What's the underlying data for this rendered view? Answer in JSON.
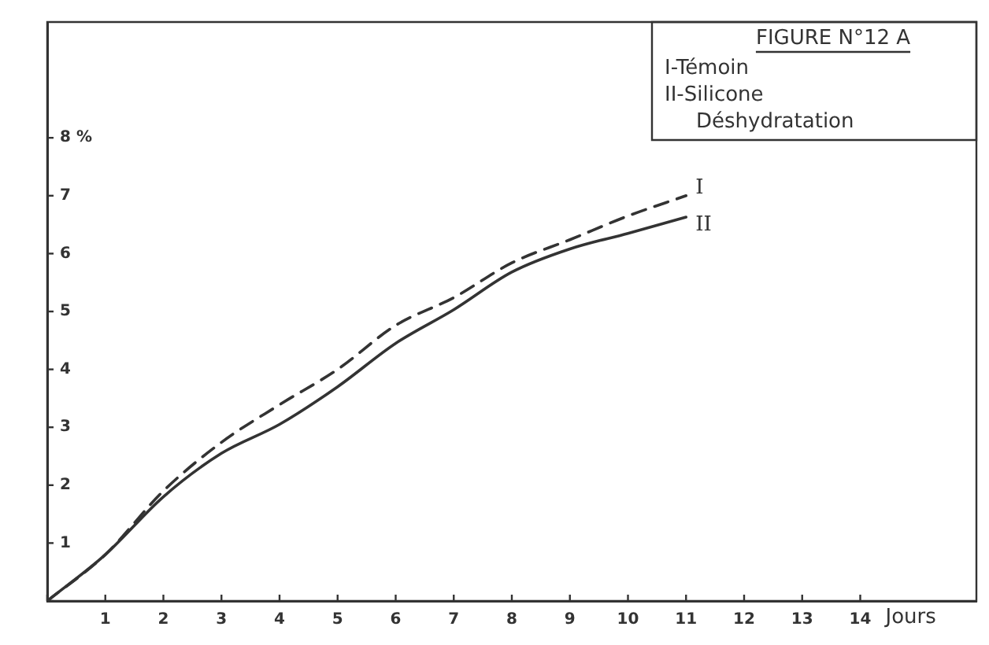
{
  "chart_data": {
    "type": "line",
    "title": "FIGURE N°12 A",
    "annotations": [
      "I-Témoin",
      "II-Silicone",
      "Déshydratation"
    ],
    "xlabel": "Jours",
    "x": [
      0,
      1,
      2,
      3,
      4,
      5,
      6,
      7,
      8,
      9,
      10,
      11
    ],
    "series": [
      {
        "name": "I",
        "color": "#333333",
        "line_style": "dashed",
        "values": [
          0,
          0.8,
          1.9,
          2.74,
          3.39,
          4.0,
          4.76,
          5.24,
          5.84,
          6.24,
          6.65,
          7.0
        ]
      },
      {
        "name": "II",
        "color": "#333333",
        "line_style": "solid",
        "values": [
          0,
          0.8,
          1.8,
          2.55,
          3.05,
          3.7,
          4.45,
          5.03,
          5.68,
          6.08,
          6.35,
          6.63
        ]
      }
    ],
    "xlim": [
      0,
      16
    ],
    "xticks": [
      {
        "value": 0,
        "label": null
      },
      1,
      2,
      3,
      4,
      5,
      6,
      7,
      8,
      9,
      10,
      11,
      12,
      13,
      14
    ],
    "ylim": [
      0,
      10
    ],
    "yticks": [
      {
        "value": 0,
        "label": null
      },
      1,
      2,
      3,
      4,
      5,
      6,
      7,
      {
        "value": 8,
        "label": "8 %"
      }
    ],
    "grid": false,
    "legend": false,
    "marker": "none"
  }
}
